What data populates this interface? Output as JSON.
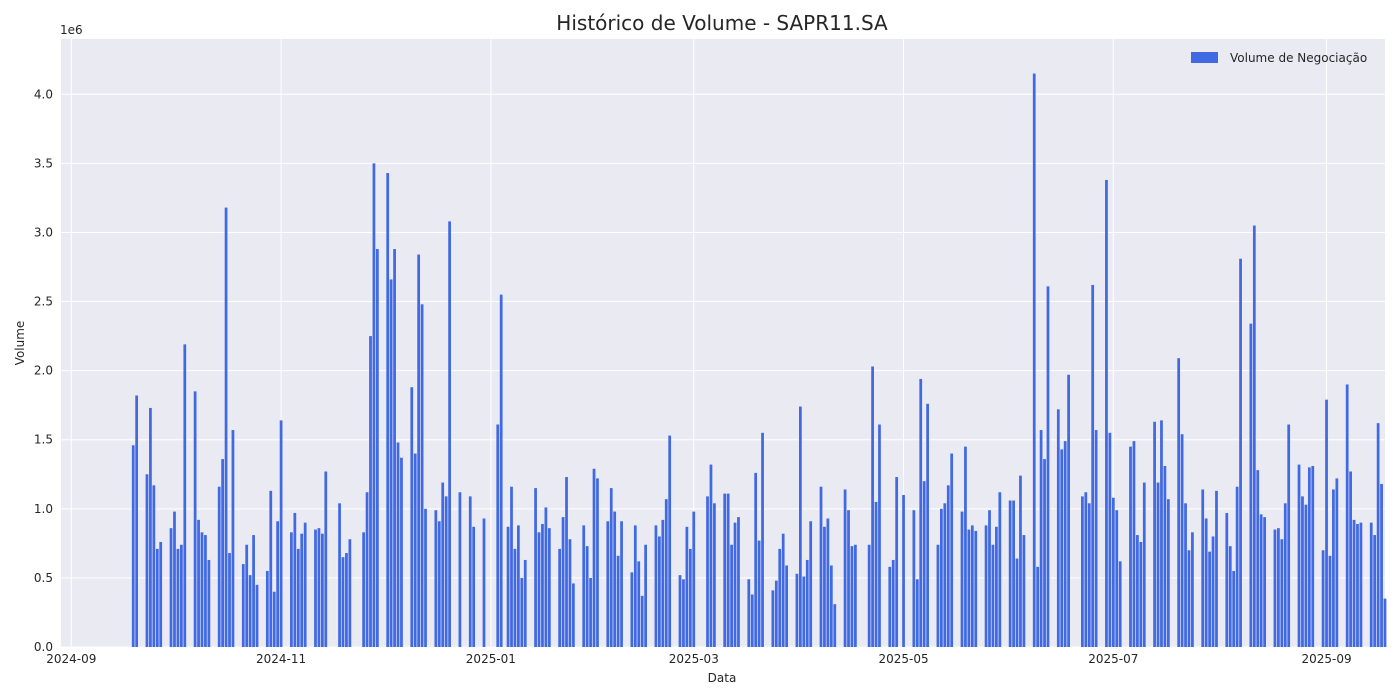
{
  "chart_data": {
    "type": "bar",
    "title": "Histórico de Volume - SAPR11.SA",
    "xlabel": "Data",
    "ylabel": "Volume",
    "y_offset_label": "1e6",
    "y_scale": 1000000,
    "ylim": [
      0,
      4.4
    ],
    "x_range_days": [
      -3,
      382
    ],
    "x_ticks": [
      {
        "label": "2024-09",
        "day": 0
      },
      {
        "label": "2024-11",
        "day": 61
      },
      {
        "label": "2025-01",
        "day": 122
      },
      {
        "label": "2025-03",
        "day": 181
      },
      {
        "label": "2025-05",
        "day": 242
      },
      {
        "label": "2025-07",
        "day": 303
      },
      {
        "label": "2025-09",
        "day": 365
      }
    ],
    "y_ticks": [
      {
        "label": "0.0",
        "value": 0.0
      },
      {
        "label": "0.5",
        "value": 0.5
      },
      {
        "label": "1.0",
        "value": 1.0
      },
      {
        "label": "1.5",
        "value": 1.5
      },
      {
        "label": "2.0",
        "value": 2.0
      },
      {
        "label": "2.5",
        "value": 2.5
      },
      {
        "label": "3.0",
        "value": 3.0
      },
      {
        "label": "3.5",
        "value": 3.5
      },
      {
        "label": "4.0",
        "value": 4.0
      }
    ],
    "legend": {
      "label": "Volume de Negociação",
      "position": "upper-right"
    },
    "bar_color": "#4169e1",
    "bar_width_days": 0.8,
    "series": [
      {
        "name": "Volume de Negociação",
        "points": [
          [
            18,
            1.46
          ],
          [
            19,
            1.82
          ],
          [
            22,
            1.25
          ],
          [
            23,
            1.73
          ],
          [
            24,
            1.17
          ],
          [
            25,
            0.71
          ],
          [
            26,
            0.76
          ],
          [
            29,
            0.86
          ],
          [
            30,
            0.98
          ],
          [
            31,
            0.71
          ],
          [
            32,
            0.74
          ],
          [
            33,
            2.19
          ],
          [
            36,
            1.85
          ],
          [
            37,
            0.92
          ],
          [
            38,
            0.83
          ],
          [
            39,
            0.81
          ],
          [
            40,
            0.63
          ],
          [
            43,
            1.16
          ],
          [
            44,
            1.36
          ],
          [
            45,
            3.18
          ],
          [
            46,
            0.68
          ],
          [
            47,
            1.57
          ],
          [
            50,
            0.6
          ],
          [
            51,
            0.74
          ],
          [
            52,
            0.52
          ],
          [
            53,
            0.81
          ],
          [
            54,
            0.45
          ],
          [
            57,
            0.55
          ],
          [
            58,
            1.13
          ],
          [
            59,
            0.4
          ],
          [
            60,
            0.91
          ],
          [
            61,
            1.64
          ],
          [
            64,
            0.83
          ],
          [
            65,
            0.97
          ],
          [
            66,
            0.71
          ],
          [
            67,
            0.82
          ],
          [
            68,
            0.9
          ],
          [
            71,
            0.85
          ],
          [
            72,
            0.86
          ],
          [
            73,
            0.82
          ],
          [
            74,
            1.27
          ],
          [
            78,
            1.04
          ],
          [
            79,
            0.65
          ],
          [
            80,
            0.68
          ],
          [
            81,
            0.78
          ],
          [
            85,
            0.83
          ],
          [
            86,
            1.12
          ],
          [
            87,
            2.25
          ],
          [
            88,
            3.5
          ],
          [
            89,
            2.88
          ],
          [
            92,
            3.43
          ],
          [
            93,
            2.66
          ],
          [
            94,
            2.88
          ],
          [
            95,
            1.48
          ],
          [
            96,
            1.37
          ],
          [
            99,
            1.88
          ],
          [
            100,
            1.4
          ],
          [
            101,
            2.84
          ],
          [
            102,
            2.48
          ],
          [
            103,
            1.0
          ],
          [
            106,
            0.99
          ],
          [
            107,
            0.91
          ],
          [
            108,
            1.19
          ],
          [
            109,
            1.09
          ],
          [
            110,
            3.08
          ],
          [
            113,
            1.12
          ],
          [
            116,
            1.09
          ],
          [
            117,
            0.87
          ],
          [
            120,
            0.93
          ],
          [
            124,
            1.61
          ],
          [
            125,
            2.55
          ],
          [
            127,
            0.87
          ],
          [
            128,
            1.16
          ],
          [
            129,
            0.71
          ],
          [
            130,
            0.88
          ],
          [
            131,
            0.5
          ],
          [
            132,
            0.63
          ],
          [
            135,
            1.15
          ],
          [
            136,
            0.83
          ],
          [
            137,
            0.89
          ],
          [
            138,
            1.01
          ],
          [
            139,
            0.86
          ],
          [
            142,
            0.71
          ],
          [
            143,
            0.94
          ],
          [
            144,
            1.23
          ],
          [
            145,
            0.78
          ],
          [
            146,
            0.46
          ],
          [
            149,
            0.88
          ],
          [
            150,
            0.73
          ],
          [
            151,
            0.5
          ],
          [
            152,
            1.29
          ],
          [
            153,
            1.22
          ],
          [
            156,
            0.91
          ],
          [
            157,
            1.15
          ],
          [
            158,
            0.98
          ],
          [
            159,
            0.66
          ],
          [
            160,
            0.91
          ],
          [
            163,
            0.54
          ],
          [
            164,
            0.88
          ],
          [
            165,
            0.62
          ],
          [
            166,
            0.37
          ],
          [
            167,
            0.74
          ],
          [
            170,
            0.88
          ],
          [
            171,
            0.8
          ],
          [
            172,
            0.92
          ],
          [
            173,
            1.07
          ],
          [
            174,
            1.53
          ],
          [
            177,
            0.52
          ],
          [
            178,
            0.49
          ],
          [
            179,
            0.87
          ],
          [
            180,
            0.71
          ],
          [
            181,
            0.98
          ],
          [
            185,
            1.09
          ],
          [
            186,
            1.32
          ],
          [
            187,
            1.04
          ],
          [
            190,
            1.11
          ],
          [
            191,
            1.11
          ],
          [
            192,
            0.74
          ],
          [
            193,
            0.9
          ],
          [
            194,
            0.94
          ],
          [
            197,
            0.49
          ],
          [
            198,
            0.38
          ],
          [
            199,
            1.26
          ],
          [
            200,
            0.77
          ],
          [
            201,
            1.55
          ],
          [
            204,
            0.41
          ],
          [
            205,
            0.48
          ],
          [
            206,
            0.71
          ],
          [
            207,
            0.82
          ],
          [
            208,
            0.59
          ],
          [
            211,
            0.53
          ],
          [
            212,
            1.74
          ],
          [
            213,
            0.51
          ],
          [
            214,
            0.63
          ],
          [
            215,
            0.91
          ],
          [
            218,
            1.16
          ],
          [
            219,
            0.87
          ],
          [
            220,
            0.93
          ],
          [
            221,
            0.59
          ],
          [
            222,
            0.31
          ],
          [
            225,
            1.14
          ],
          [
            226,
            0.99
          ],
          [
            227,
            0.73
          ],
          [
            228,
            0.74
          ],
          [
            232,
            0.74
          ],
          [
            233,
            2.03
          ],
          [
            234,
            1.05
          ],
          [
            235,
            1.61
          ],
          [
            238,
            0.58
          ],
          [
            239,
            0.63
          ],
          [
            240,
            1.23
          ],
          [
            242,
            1.1
          ],
          [
            245,
            0.99
          ],
          [
            246,
            0.49
          ],
          [
            247,
            1.94
          ],
          [
            248,
            1.2
          ],
          [
            249,
            1.76
          ],
          [
            252,
            0.74
          ],
          [
            253,
            1.0
          ],
          [
            254,
            1.04
          ],
          [
            255,
            1.17
          ],
          [
            256,
            1.4
          ],
          [
            259,
            0.98
          ],
          [
            260,
            1.45
          ],
          [
            261,
            0.85
          ],
          [
            262,
            0.88
          ],
          [
            263,
            0.84
          ],
          [
            266,
            0.88
          ],
          [
            267,
            0.99
          ],
          [
            268,
            0.74
          ],
          [
            269,
            0.87
          ],
          [
            270,
            1.12
          ],
          [
            273,
            1.06
          ],
          [
            274,
            1.06
          ],
          [
            275,
            0.64
          ],
          [
            276,
            1.24
          ],
          [
            277,
            0.81
          ],
          [
            280,
            4.15
          ],
          [
            281,
            0.58
          ],
          [
            282,
            1.57
          ],
          [
            283,
            1.36
          ],
          [
            284,
            2.61
          ],
          [
            287,
            1.72
          ],
          [
            288,
            1.43
          ],
          [
            289,
            1.49
          ],
          [
            290,
            1.97
          ],
          [
            294,
            1.09
          ],
          [
            295,
            1.12
          ],
          [
            296,
            1.04
          ],
          [
            297,
            2.62
          ],
          [
            298,
            1.57
          ],
          [
            301,
            3.38
          ],
          [
            302,
            1.55
          ],
          [
            303,
            1.08
          ],
          [
            304,
            0.99
          ],
          [
            305,
            0.62
          ],
          [
            308,
            1.45
          ],
          [
            309,
            1.49
          ],
          [
            310,
            0.81
          ],
          [
            311,
            0.76
          ],
          [
            312,
            1.19
          ],
          [
            315,
            1.63
          ],
          [
            316,
            1.19
          ],
          [
            317,
            1.64
          ],
          [
            318,
            1.31
          ],
          [
            319,
            1.07
          ],
          [
            322,
            2.09
          ],
          [
            323,
            1.54
          ],
          [
            324,
            1.04
          ],
          [
            325,
            0.7
          ],
          [
            326,
            0.83
          ],
          [
            329,
            1.14
          ],
          [
            330,
            0.93
          ],
          [
            331,
            0.69
          ],
          [
            332,
            0.8
          ],
          [
            333,
            1.13
          ],
          [
            336,
            0.97
          ],
          [
            337,
            0.73
          ],
          [
            338,
            0.55
          ],
          [
            339,
            1.16
          ],
          [
            340,
            2.81
          ],
          [
            343,
            2.34
          ],
          [
            344,
            3.05
          ],
          [
            345,
            1.28
          ],
          [
            346,
            0.96
          ],
          [
            347,
            0.94
          ],
          [
            350,
            0.85
          ],
          [
            351,
            0.86
          ],
          [
            352,
            0.78
          ],
          [
            353,
            1.04
          ],
          [
            354,
            1.61
          ],
          [
            357,
            1.32
          ],
          [
            358,
            1.09
          ],
          [
            359,
            1.03
          ],
          [
            360,
            1.3
          ],
          [
            361,
            1.31
          ],
          [
            364,
            0.7
          ],
          [
            365,
            1.79
          ],
          [
            366,
            0.66
          ],
          [
            367,
            1.14
          ],
          [
            368,
            1.22
          ],
          [
            371,
            1.9
          ],
          [
            372,
            1.27
          ],
          [
            373,
            0.92
          ],
          [
            374,
            0.89
          ],
          [
            375,
            0.9
          ],
          [
            378,
            0.9
          ],
          [
            379,
            0.81
          ],
          [
            380,
            1.62
          ],
          [
            381,
            1.18
          ],
          [
            382,
            0.35
          ]
        ]
      }
    ]
  }
}
